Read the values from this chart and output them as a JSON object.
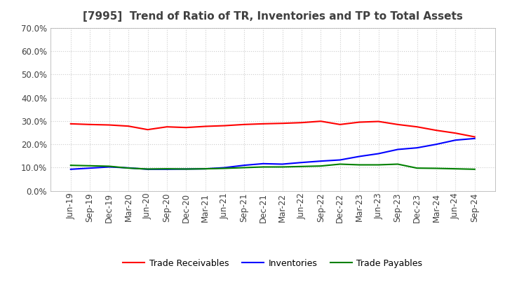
{
  "title": "[7995]  Trend of Ratio of TR, Inventories and TP to Total Assets",
  "x_labels": [
    "Jun-19",
    "Sep-19",
    "Dec-19",
    "Mar-20",
    "Jun-20",
    "Sep-20",
    "Dec-20",
    "Mar-21",
    "Jun-21",
    "Sep-21",
    "Dec-21",
    "Mar-22",
    "Jun-22",
    "Sep-22",
    "Dec-22",
    "Mar-23",
    "Jun-23",
    "Sep-23",
    "Dec-23",
    "Mar-24",
    "Jun-24",
    "Sep-24"
  ],
  "trade_receivables": [
    0.288,
    0.285,
    0.283,
    0.278,
    0.263,
    0.275,
    0.272,
    0.277,
    0.28,
    0.285,
    0.288,
    0.29,
    0.293,
    0.299,
    0.285,
    0.295,
    0.298,
    0.285,
    0.275,
    0.26,
    0.248,
    0.232
  ],
  "inventories": [
    0.093,
    0.098,
    0.103,
    0.099,
    0.093,
    0.093,
    0.094,
    0.095,
    0.1,
    0.11,
    0.117,
    0.115,
    0.122,
    0.128,
    0.133,
    0.148,
    0.16,
    0.178,
    0.185,
    0.2,
    0.218,
    0.225
  ],
  "trade_payables": [
    0.11,
    0.108,
    0.106,
    0.098,
    0.094,
    0.095,
    0.094,
    0.095,
    0.097,
    0.1,
    0.103,
    0.103,
    0.105,
    0.107,
    0.115,
    0.112,
    0.112,
    0.115,
    0.098,
    0.097,
    0.095,
    0.093
  ],
  "color_tr": "#ff0000",
  "color_inv": "#0000ff",
  "color_tp": "#008000",
  "ylim": [
    0.0,
    0.7
  ],
  "yticks": [
    0.0,
    0.1,
    0.2,
    0.3,
    0.4,
    0.5,
    0.6,
    0.7
  ],
  "legend_labels": [
    "Trade Receivables",
    "Inventories",
    "Trade Payables"
  ],
  "background_color": "#ffffff",
  "grid_color": "#aaaaaa",
  "title_color": "#404040",
  "title_fontsize": 11,
  "tick_fontsize": 8.5
}
